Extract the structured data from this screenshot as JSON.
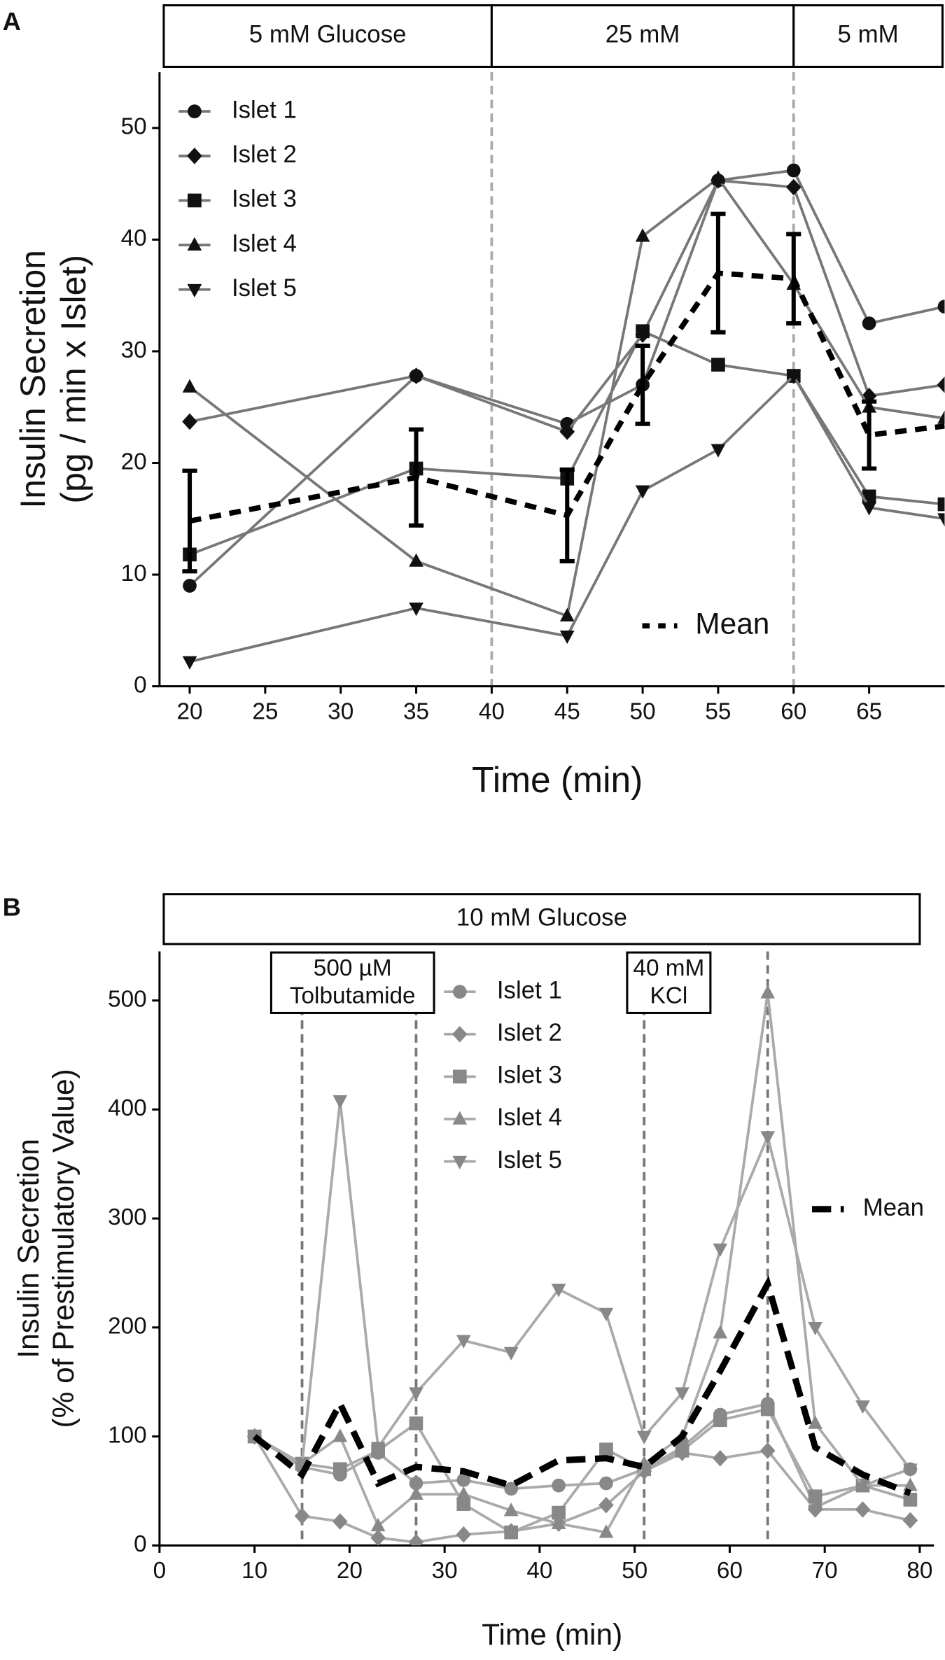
{
  "chart_data": [
    {
      "type": "line",
      "panel": "A",
      "conditions": [
        {
          "label": "5 mM Glucose",
          "start": 18,
          "end": 40
        },
        {
          "label": "25 mM",
          "start": 40,
          "end": 60
        },
        {
          "label": "5 mM",
          "start": 60,
          "end": 70
        }
      ],
      "vlines": [
        40,
        60
      ],
      "xlabel": "Time (min)",
      "ylabel": [
        "Insulin Secretion",
        "(pg / min x Islet)"
      ],
      "x": [
        20,
        35,
        45,
        50,
        55,
        60,
        65,
        70
      ],
      "xlim": [
        18,
        70
      ],
      "xticks": [
        20,
        25,
        30,
        35,
        40,
        45,
        50,
        55,
        60,
        65
      ],
      "ylim": [
        0,
        55
      ],
      "yticks": [
        0,
        10,
        20,
        30,
        40,
        50
      ],
      "line_color": "#777777",
      "marker_color": "#111111",
      "series": [
        {
          "name": "Islet 1",
          "marker": "circle",
          "values": [
            9,
            27.8,
            23.5,
            27,
            45.3,
            46.2,
            32.5,
            34
          ]
        },
        {
          "name": "Islet 2",
          "marker": "diamond",
          "values": [
            23.7,
            27.8,
            22.8,
            31.5,
            45.3,
            44.7,
            26,
            27
          ]
        },
        {
          "name": "Islet 3",
          "marker": "square",
          "values": [
            11.8,
            19.5,
            18.6,
            31.8,
            28.8,
            27.8,
            17,
            16.3
          ]
        },
        {
          "name": "Islet 4",
          "marker": "triangle",
          "values": [
            26.8,
            11.2,
            6.3,
            40.3,
            45.5,
            36,
            25,
            24
          ]
        },
        {
          "name": "Islet 5",
          "marker": "triangle-down",
          "values": [
            2.2,
            7,
            4.5,
            17.5,
            21.2,
            27.8,
            16,
            15
          ]
        },
        {
          "name": "Mean",
          "style": "dashed",
          "color": "#000000",
          "values": [
            14.8,
            18.7,
            15.3,
            27,
            37,
            36.5,
            22.5,
            23.3
          ],
          "errors": [
            4.5,
            4.3,
            4.1,
            3.5,
            5.3,
            4.0,
            3.0,
            null
          ]
        }
      ]
    },
    {
      "type": "line",
      "panel": "B",
      "conditions": [
        {
          "label": "10 mM Glucose",
          "start": 0,
          "end": 80
        }
      ],
      "vlines": [
        15,
        27,
        51,
        64
      ],
      "annotations": [
        {
          "lines": [
            "500 µM",
            "Tolbutamide"
          ]
        },
        {
          "lines": [
            "40 mM",
            "KCl"
          ]
        }
      ],
      "xlabel": "Time (min)",
      "ylabel": [
        "Insulin Secretion",
        "(% of Prestimulatory Value)"
      ],
      "x": [
        10,
        15,
        19,
        23,
        27,
        32,
        37,
        42,
        47,
        51,
        55,
        59,
        64,
        69,
        74,
        79
      ],
      "xlim": [
        0,
        81.5
      ],
      "xticks": [
        0,
        10,
        20,
        30,
        40,
        50,
        60,
        70,
        80
      ],
      "ylim": [
        0,
        545
      ],
      "yticks": [
        0,
        100,
        200,
        300,
        400,
        500
      ],
      "line_color": "#aaaaaa",
      "marker_color": "#888888",
      "series": [
        {
          "name": "Islet 1",
          "marker": "circle",
          "values": [
            100,
            72,
            65,
            85,
            57,
            60,
            52,
            55,
            57,
            70,
            90,
            120,
            130,
            35,
            55,
            70
          ]
        },
        {
          "name": "Islet 2",
          "marker": "diamond",
          "values": [
            100,
            27,
            22,
            7,
            3,
            10,
            13,
            20,
            37,
            68,
            85,
            80,
            87,
            33,
            33,
            23
          ]
        },
        {
          "name": "Islet 3",
          "marker": "square",
          "values": [
            100,
            75,
            70,
            87,
            112,
            38,
            12,
            30,
            88,
            70,
            87,
            115,
            125,
            45,
            55,
            42
          ]
        },
        {
          "name": "Islet 4",
          "marker": "triangle",
          "values": [
            100,
            75,
            100,
            18,
            47,
            47,
            32,
            20,
            12,
            75,
            100,
            195,
            507,
            112,
            55,
            55
          ]
        },
        {
          "name": "Islet 5",
          "marker": "triangle-down",
          "values": [
            100,
            75,
            408,
            90,
            140,
            188,
            177,
            235,
            213,
            100,
            140,
            272,
            375,
            200,
            128,
            70
          ]
        },
        {
          "name": "Mean",
          "style": "dashed",
          "color": "#000000",
          "values": [
            100,
            65,
            130,
            57,
            72,
            68,
            55,
            78,
            80,
            72,
            100,
            160,
            240,
            90,
            65,
            48
          ]
        }
      ]
    }
  ]
}
